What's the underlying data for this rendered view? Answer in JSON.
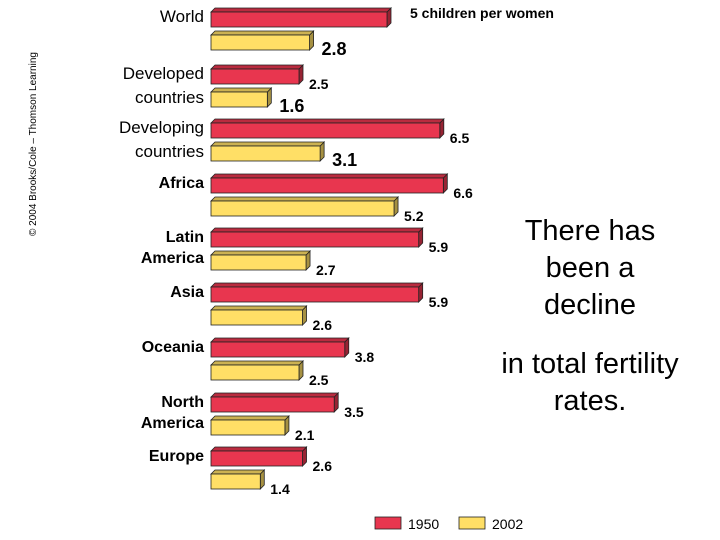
{
  "copyright": "© 2004 Brooks/Cole – Thomson Learning",
  "annotation_top": "There has been a decline",
  "annotation_bottom": "in total fertility rates.",
  "chart_data": {
    "type": "bar",
    "orientation": "horizontal",
    "categories": [
      {
        "lines": [
          "World"
        ],
        "bold": false
      },
      {
        "lines": [
          "Developed",
          "countries"
        ],
        "bold": false
      },
      {
        "lines": [
          "Developing",
          "countries"
        ],
        "bold": false
      },
      {
        "lines": [
          "Africa"
        ],
        "bold": true
      },
      {
        "lines": [
          "Latin",
          "America"
        ],
        "bold": true
      },
      {
        "lines": [
          "Asia"
        ],
        "bold": true
      },
      {
        "lines": [
          "Oceania"
        ],
        "bold": true
      },
      {
        "lines": [
          "North",
          "America"
        ],
        "bold": true
      },
      {
        "lines": [
          "Europe"
        ],
        "bold": true
      }
    ],
    "series": [
      {
        "name": "1950",
        "color": "#e8364f",
        "values": [
          5,
          2.5,
          6.5,
          6.6,
          5.9,
          5.9,
          3.8,
          3.5,
          2.6
        ],
        "labels": [
          "5 children per women",
          "2.5",
          "6.5",
          "6.6",
          "5.9",
          "5.9",
          "3.8",
          "3.5",
          "2.6"
        ]
      },
      {
        "name": "2002",
        "color": "#ffdf66",
        "values": [
          2.8,
          1.6,
          3.1,
          5.2,
          2.7,
          2.6,
          2.5,
          2.1,
          1.4
        ],
        "labels": [
          "2.8",
          "1.6",
          "3.1",
          "5.2",
          "2.7",
          "2.6",
          "2.5",
          "2.1",
          "1.4"
        ]
      }
    ],
    "large_labels": [
      [
        false,
        false,
        false,
        false,
        false,
        false,
        false,
        false,
        false
      ],
      [
        true,
        true,
        true,
        false,
        false,
        false,
        false,
        false,
        false
      ]
    ],
    "xlim": [
      0,
      7
    ],
    "legend": "bottom"
  }
}
